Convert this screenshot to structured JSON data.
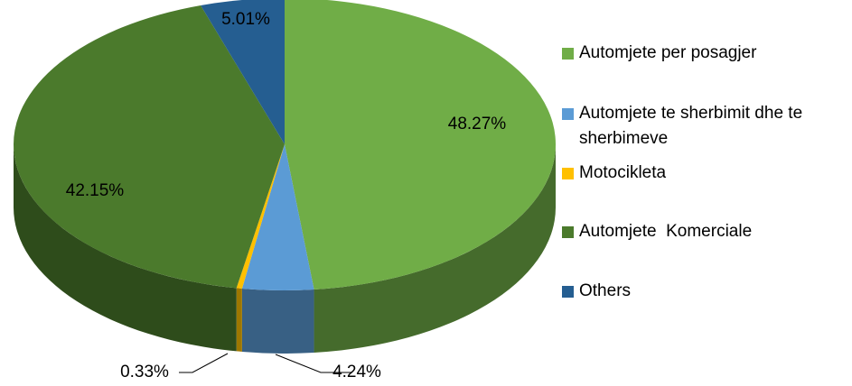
{
  "chart_data": {
    "type": "pie",
    "categories": [
      "Automjete per posagjer",
      "Automjete te sherbimit dhe te sherbimeve",
      "Motocikleta",
      "Automjete  Komerciale",
      "Others"
    ],
    "values": [
      48.27,
      4.24,
      0.33,
      42.15,
      5.01
    ],
    "value_labels": [
      "48.27%",
      "4.24%",
      "0.33%",
      "42.15%",
      "5.01%"
    ],
    "colors": [
      "#70ad47",
      "#5b9bd5",
      "#ffc000",
      "#4b7a2c",
      "#255e91"
    ],
    "legend": "right"
  }
}
